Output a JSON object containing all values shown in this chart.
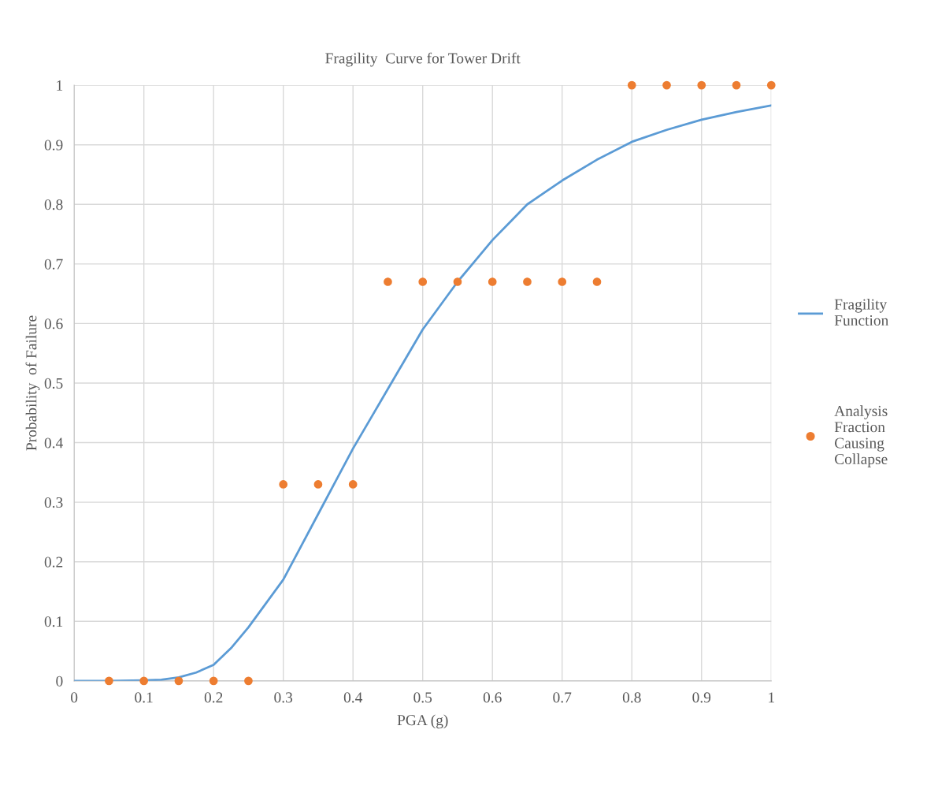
{
  "chart_data": {
    "type": "line",
    "title": "Fragility  Curve for Tower Drift",
    "xlabel": "PGA (g)",
    "ylabel": "Probability  of Failure",
    "xlim": [
      0,
      1
    ],
    "xticks": [
      0,
      0.1,
      0.2,
      0.3,
      0.4,
      0.5,
      0.6,
      0.7,
      0.8,
      0.9,
      1
    ],
    "ylim": [
      0,
      1
    ],
    "yticks": [
      0,
      0.1,
      0.2,
      0.3,
      0.4,
      0.5,
      0.6,
      0.7,
      0.8,
      0.9,
      1
    ],
    "grid": true,
    "legend": "right",
    "series": [
      {
        "name": "Fragility Function",
        "color": "#5b9bd5",
        "marker": "none",
        "line_style": "solid",
        "x": [
          0,
          0.05,
          0.1,
          0.125,
          0.15,
          0.175,
          0.2,
          0.225,
          0.25,
          0.275,
          0.3,
          0.325,
          0.35,
          0.375,
          0.4,
          0.425,
          0.45,
          0.475,
          0.5,
          0.525,
          0.55,
          0.575,
          0.6,
          0.625,
          0.65,
          0.675,
          0.7,
          0.75,
          0.8,
          0.85,
          0.9,
          0.95,
          1
        ],
        "values": [
          0,
          0,
          0.001,
          0.002,
          0.006,
          0.014,
          0.027,
          0.055,
          0.09,
          0.13,
          0.17,
          0.225,
          0.28,
          0.335,
          0.39,
          0.44,
          0.49,
          0.54,
          0.59,
          0.63,
          0.67,
          0.705,
          0.74,
          0.77,
          0.8,
          0.82,
          0.84,
          0.875,
          0.905,
          0.925,
          0.942,
          0.955,
          0.966
        ]
      },
      {
        "name": "Analysis Fraction Causing Collapse",
        "type": "scatter",
        "color": "#ed7d31",
        "marker": "circle",
        "x": [
          0.05,
          0.1,
          0.15,
          0.2,
          0.25,
          0.3,
          0.35,
          0.4,
          0.45,
          0.5,
          0.55,
          0.6,
          0.65,
          0.7,
          0.75,
          0.8,
          0.85,
          0.9,
          0.95,
          1
        ],
        "values": [
          0,
          0,
          0,
          0,
          0,
          0.33,
          0.33,
          0.33,
          0.67,
          0.67,
          0.67,
          0.67,
          0.67,
          0.67,
          0.67,
          1,
          1,
          1,
          1,
          1
        ]
      }
    ]
  }
}
